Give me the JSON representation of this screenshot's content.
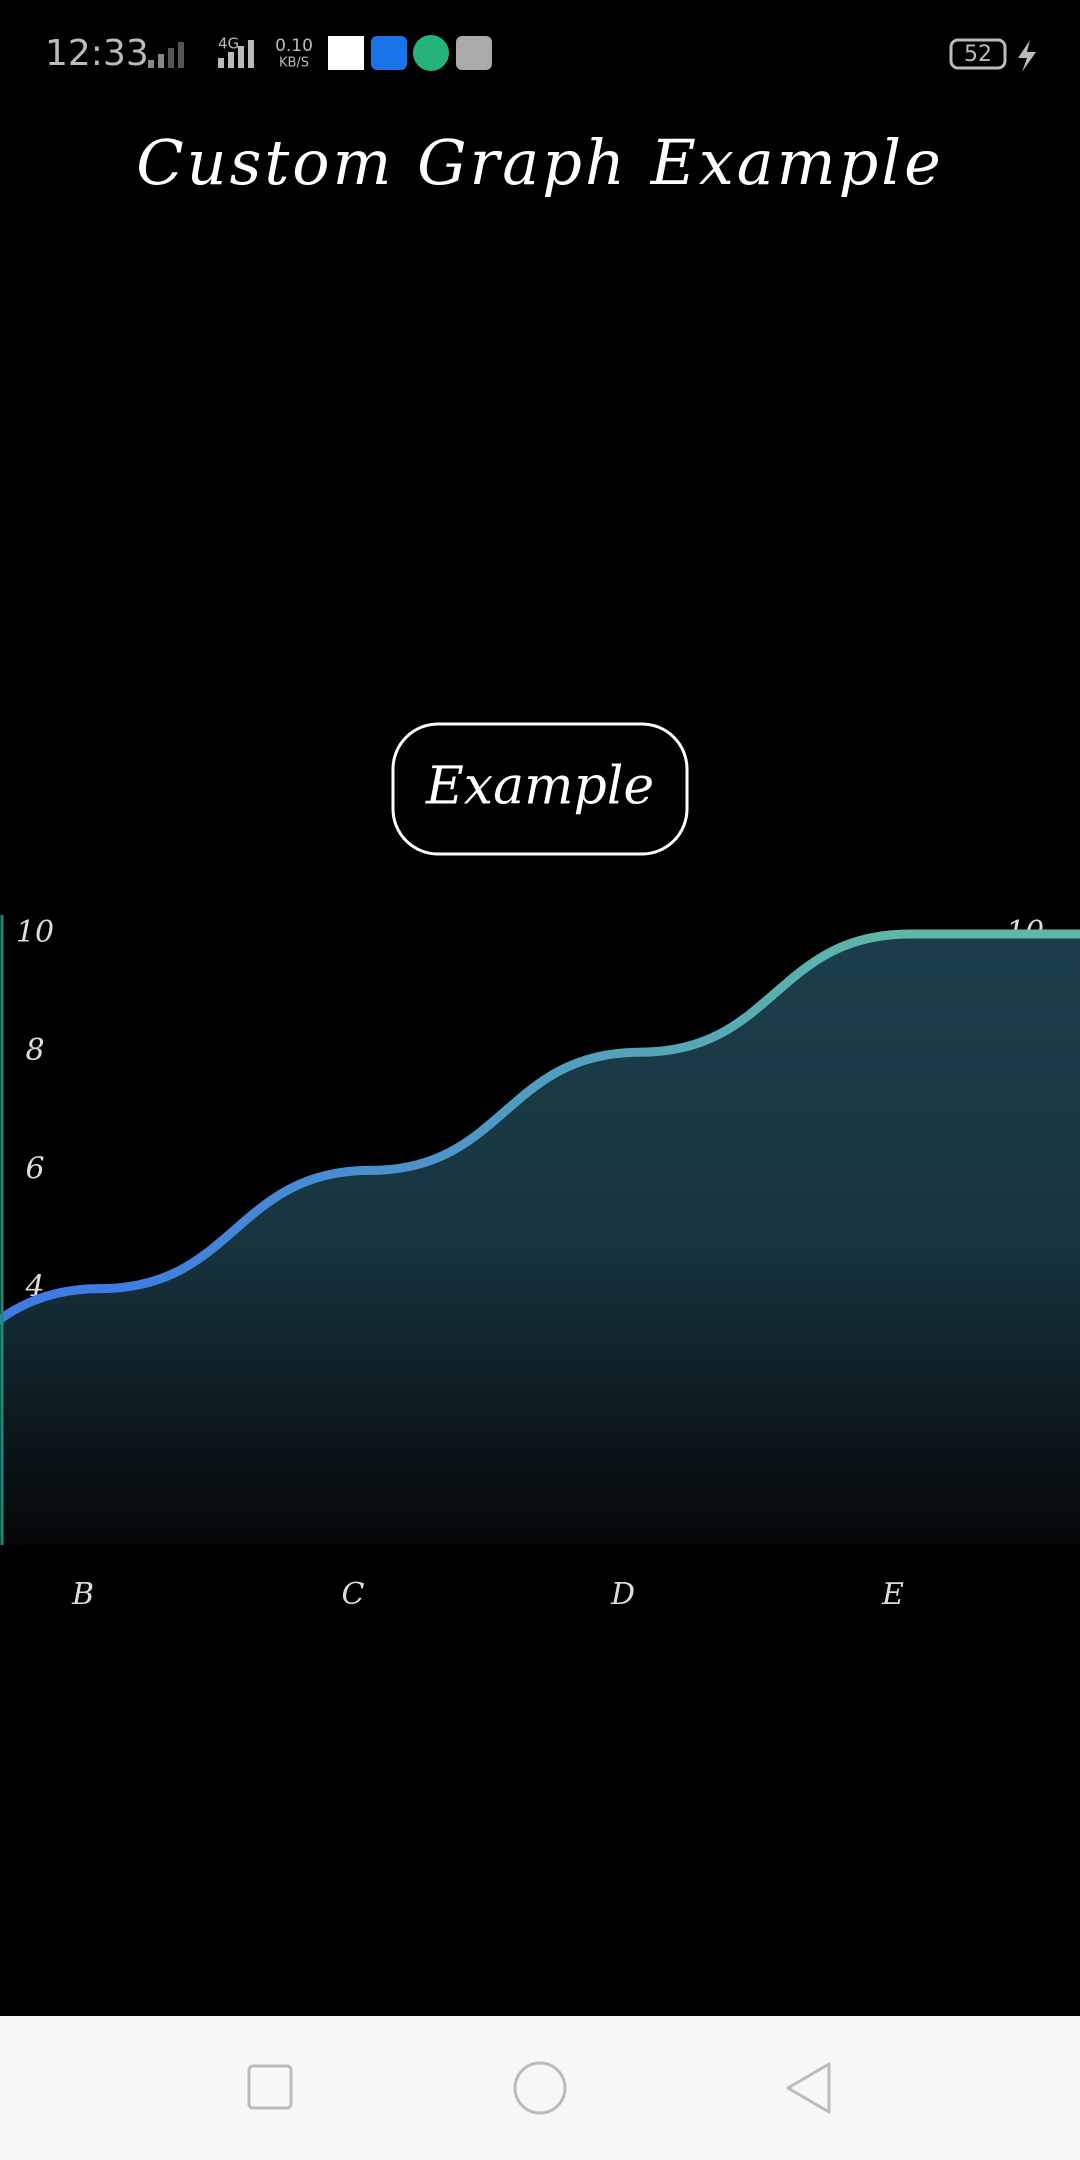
{
  "status_bar": {
    "time": "12:33",
    "network": "4G",
    "speed": "0.10",
    "speed_unit": "KB/S",
    "battery": "52"
  },
  "header": {
    "title": "Custom Graph Example"
  },
  "button": {
    "label": "Example"
  },
  "chart_data": {
    "type": "line",
    "categories": [
      "B",
      "C",
      "D",
      "E"
    ],
    "values": [
      4,
      6,
      8,
      10
    ],
    "ylim": [
      0,
      10
    ],
    "yticks": [
      0,
      2,
      4,
      6,
      8,
      10
    ],
    "line_colors": [
      "#3f7be2",
      "#5fb8a6"
    ],
    "fill_color": "#1b3f4a"
  }
}
